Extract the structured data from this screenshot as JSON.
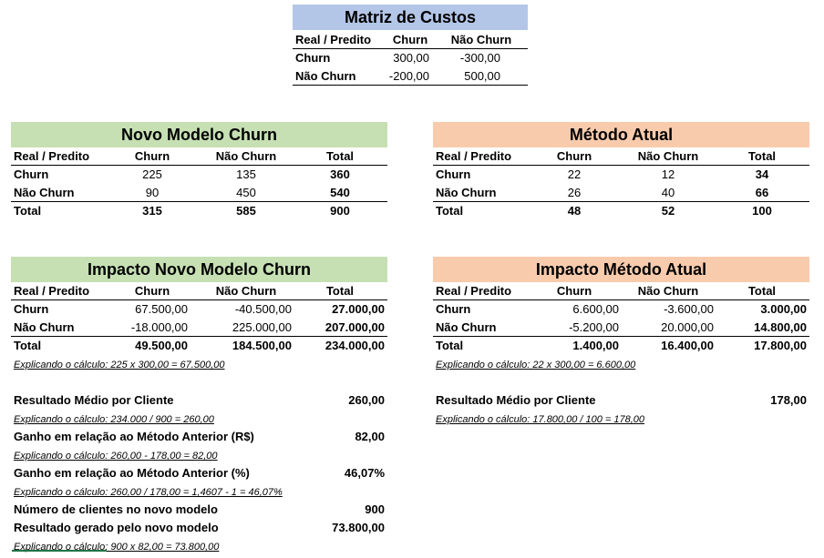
{
  "cost_matrix": {
    "title": "Matriz de Custos",
    "headers": [
      "Real / Predito",
      "Churn",
      "Não Churn"
    ],
    "rows": [
      {
        "label": "Churn",
        "churn": "300,00",
        "nao_churn": "-300,00"
      },
      {
        "label": "Não Churn",
        "churn": "-200,00",
        "nao_churn": "500,00"
      }
    ]
  },
  "novo_modelo": {
    "title": "Novo Modelo Churn",
    "headers": [
      "Real / Predito",
      "Churn",
      "Não Churn",
      "Total"
    ],
    "rows": [
      {
        "label": "Churn",
        "churn": "225",
        "nao_churn": "135",
        "total": "360"
      },
      {
        "label": "Não Churn",
        "churn": "90",
        "nao_churn": "450",
        "total": "540"
      },
      {
        "label": "Total",
        "churn": "315",
        "nao_churn": "585",
        "total": "900"
      }
    ]
  },
  "metodo_atual": {
    "title": "Método Atual",
    "headers": [
      "Real / Predito",
      "Churn",
      "Não Churn",
      "Total"
    ],
    "rows": [
      {
        "label": "Churn",
        "churn": "22",
        "nao_churn": "12",
        "total": "34"
      },
      {
        "label": "Não Churn",
        "churn": "26",
        "nao_churn": "40",
        "total": "66"
      },
      {
        "label": "Total",
        "churn": "48",
        "nao_churn": "52",
        "total": "100"
      }
    ]
  },
  "impacto_novo": {
    "title": "Impacto Novo Modelo Churn",
    "headers": [
      "Real / Predito",
      "Churn",
      "Não Churn",
      "Total"
    ],
    "rows": [
      {
        "label": "Churn",
        "churn": "67.500,00",
        "nao_churn": "-40.500,00",
        "total": "27.000,00"
      },
      {
        "label": "Não Churn",
        "churn": "-18.000,00",
        "nao_churn": "225.000,00",
        "total": "207.000,00"
      },
      {
        "label": "Total",
        "churn": "49.500,00",
        "nao_churn": "184.500,00",
        "total": "234.000,00"
      }
    ],
    "note": "Explicando o cálculo: 225 x 300,00 = 67.500,00"
  },
  "impacto_atual": {
    "title": "Impacto Método Atual",
    "headers": [
      "Real / Predito",
      "Churn",
      "Não Churn",
      "Total"
    ],
    "rows": [
      {
        "label": "Churn",
        "churn": "6.600,00",
        "nao_churn": "-3.600,00",
        "total": "3.000,00"
      },
      {
        "label": "Não Churn",
        "churn": "-5.200,00",
        "nao_churn": "20.000,00",
        "total": "14.800,00"
      },
      {
        "label": "Total",
        "churn": "1.400,00",
        "nao_churn": "16.400,00",
        "total": "17.800,00"
      }
    ],
    "note": "Explicando o cálculo: 22 x 300,00 = 6.600,00"
  },
  "results_novo": {
    "resultado_medio": {
      "label": "Resultado Médio por Cliente",
      "value": "260,00",
      "note": "Explicando o cálculo: 234.000 / 900 = 260,00"
    },
    "ganho_rs": {
      "label": "Ganho em relação ao Método Anterior (R$)",
      "value": "82,00",
      "note": "Explicando o cálculo: 260,00 - 178,00 = 82,00"
    },
    "ganho_pct": {
      "label": "Ganho em relação ao Método Anterior (%)",
      "value": "46,07%",
      "note": "Explicando o cálculo: 260,00 / 178,00 = 1,4607 - 1 = 46,07%"
    },
    "num_clientes": {
      "label": "Número de clientes no novo modelo",
      "value": "900"
    },
    "resultado_gerado": {
      "label": "Resultado gerado pelo novo modelo",
      "value": "73.800,00",
      "note": "Explicando o cálculo: 900 x 82,00 = 73.800,00"
    }
  },
  "results_atual": {
    "resultado_medio": {
      "label": "Resultado Médio por Cliente",
      "value": "178,00",
      "note": "Explicando o cálculo: 17.800,00 / 100 = 178,00"
    }
  },
  "colors": {
    "title_blue": "#b4c6e7",
    "title_green": "#c6e0b4",
    "title_orange": "#f8cbad"
  }
}
